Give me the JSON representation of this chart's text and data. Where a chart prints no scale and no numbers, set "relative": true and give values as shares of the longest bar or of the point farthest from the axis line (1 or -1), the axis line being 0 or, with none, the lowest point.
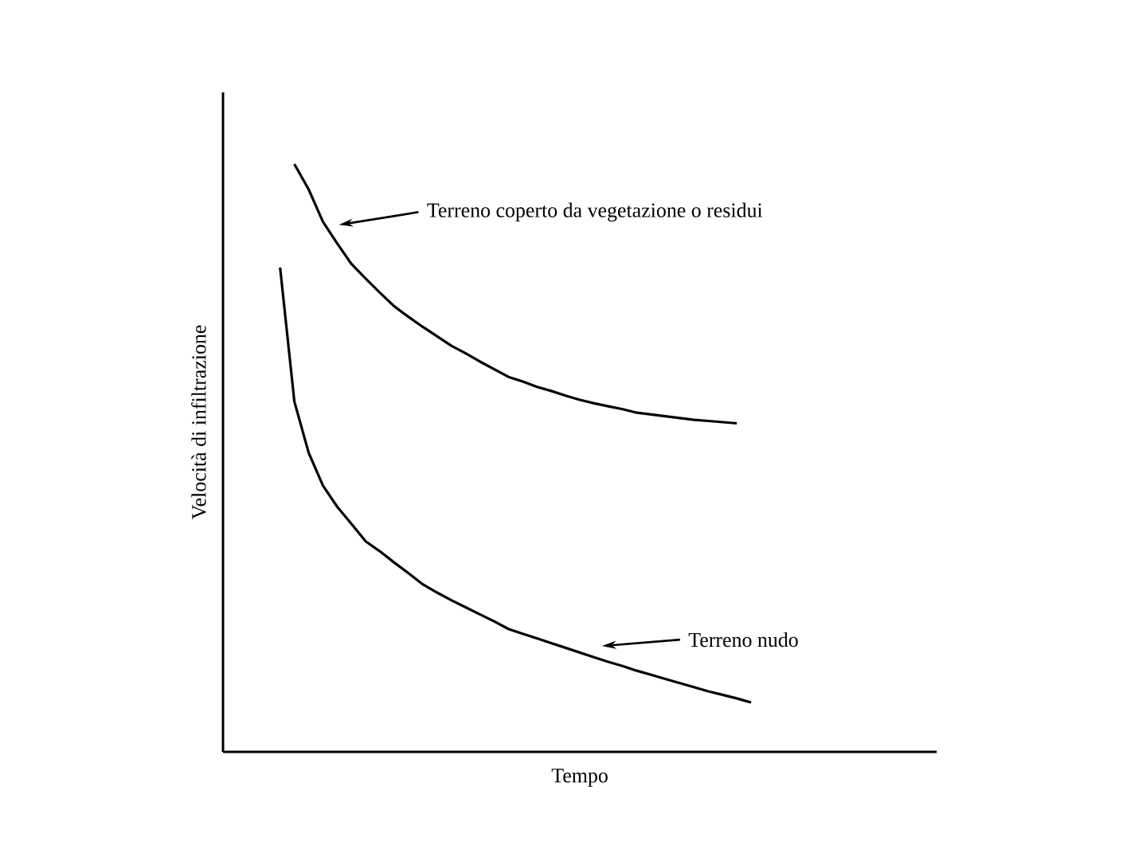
{
  "chart_data": {
    "type": "line",
    "relative": true,
    "xlabel": "Tempo",
    "ylabel": "Velocità di infiltrazione",
    "categories": [
      null,
      null,
      null,
      null,
      null,
      null,
      null,
      null,
      null,
      null,
      null,
      null,
      null,
      null,
      null,
      null,
      null,
      null,
      null,
      null,
      null,
      null,
      null,
      null,
      null,
      null,
      null,
      null,
      null,
      null,
      null,
      null,
      null,
      null
    ],
    "tick_labels": false,
    "marker": "none",
    "line_style": "solid",
    "legend": "right",
    "series": [
      {
        "name": "Terreno coperto da vegetazione o residui",
        "color": "#000000",
        "values": [
          null,
          1,
          0.957,
          0.902,
          0.865,
          0.83,
          0.805,
          0.781,
          0.758,
          0.74,
          0.723,
          0.707,
          0.691,
          0.678,
          0.664,
          0.651,
          0.638,
          0.63,
          0.621,
          0.614,
          0.606,
          0.599,
          0.593,
          0.588,
          0.583,
          0.577,
          0.574,
          0.571,
          0.568,
          0.565,
          0.563,
          0.561,
          0.559,
          null
        ]
      },
      {
        "name": "Terreno nudo",
        "color": "#000000",
        "values": [
          0.824,
          0.596,
          0.509,
          0.453,
          0.417,
          0.388,
          0.358,
          0.341,
          0.322,
          0.304,
          0.285,
          0.271,
          0.258,
          0.246,
          0.234,
          0.222,
          0.209,
          0.201,
          0.193,
          0.185,
          0.177,
          0.169,
          0.161,
          0.153,
          0.146,
          0.138,
          0.131,
          0.124,
          0.117,
          0.11,
          0.103,
          0.097,
          0.091,
          0.084
        ]
      }
    ]
  }
}
